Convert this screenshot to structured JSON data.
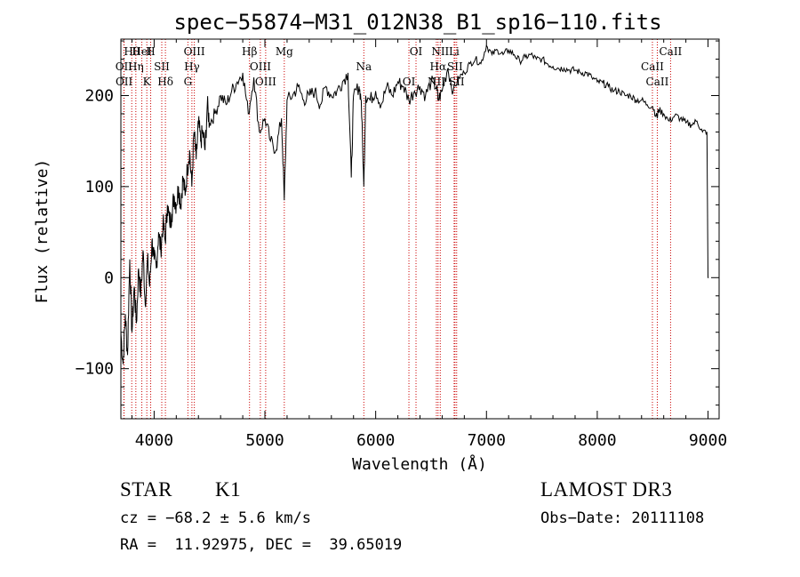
{
  "chart_data": {
    "type": "line",
    "title": "spec−55874−M31_012N38_B1_sp16−110.fits",
    "xlabel": "Wavelength (Å)",
    "ylabel": "Flux (relative)",
    "xlim": [
      3700,
      9100
    ],
    "ylim": [
      -155,
      262
    ],
    "xticks": [
      4000,
      5000,
      6000,
      7000,
      8000,
      9000
    ],
    "xtick_labels": [
      "4000",
      "5000",
      "6000",
      "7000",
      "8000",
      "9000"
    ],
    "yticks": [
      -100,
      0,
      100,
      200
    ],
    "ytick_labels": [
      "−100",
      "0",
      "100",
      "200"
    ],
    "series": [
      {
        "name": "flux",
        "x": [
          3700,
          3720,
          3740,
          3760,
          3780,
          3800,
          3820,
          3840,
          3860,
          3880,
          3900,
          3920,
          3940,
          3960,
          3980,
          4000,
          4020,
          4040,
          4060,
          4080,
          4100,
          4120,
          4140,
          4160,
          4180,
          4200,
          4220,
          4240,
          4260,
          4280,
          4300,
          4320,
          4340,
          4360,
          4380,
          4400,
          4420,
          4440,
          4460,
          4480,
          4500,
          4550,
          4600,
          4650,
          4700,
          4750,
          4800,
          4850,
          4900,
          4950,
          5000,
          5050,
          5100,
          5150,
          5175,
          5200,
          5250,
          5300,
          5350,
          5400,
          5450,
          5500,
          5550,
          5600,
          5650,
          5700,
          5750,
          5780,
          5800,
          5850,
          5870,
          5893,
          5910,
          5950,
          6000,
          6050,
          6100,
          6150,
          6200,
          6250,
          6300,
          6350,
          6400,
          6450,
          6500,
          6550,
          6563,
          6600,
          6650,
          6700,
          6750,
          6800,
          6850,
          6900,
          6950,
          7000,
          7050,
          7100,
          7150,
          7200,
          7250,
          7300,
          7350,
          7400,
          7450,
          7500,
          7550,
          7600,
          7650,
          7700,
          7750,
          7800,
          7850,
          7900,
          7950,
          8000,
          8050,
          8100,
          8150,
          8200,
          8250,
          8300,
          8350,
          8400,
          8450,
          8500,
          8542,
          8550,
          8600,
          8650,
          8700,
          8750,
          8800,
          8850,
          8900,
          8950,
          8990,
          9000,
          9005
        ],
        "values": [
          -60,
          -95,
          -40,
          -85,
          20,
          -60,
          -10,
          -50,
          10,
          -20,
          30,
          -30,
          20,
          -10,
          40,
          20,
          10,
          50,
          30,
          60,
          40,
          80,
          60,
          70,
          90,
          80,
          100,
          80,
          110,
          90,
          120,
          140,
          100,
          160,
          130,
          170,
          150,
          160,
          140,
          190,
          170,
          180,
          200,
          190,
          205,
          215,
          225,
          180,
          220,
          160,
          175,
          150,
          140,
          175,
          85,
          195,
          200,
          210,
          195,
          200,
          205,
          190,
          210,
          200,
          205,
          215,
          225,
          110,
          200,
          210,
          195,
          100,
          200,
          195,
          205,
          190,
          210,
          200,
          215,
          210,
          195,
          205,
          210,
          200,
          215,
          210,
          195,
          205,
          230,
          205,
          220,
          225,
          235,
          240,
          235,
          255,
          245,
          250,
          245,
          250,
          245,
          238,
          242,
          245,
          240,
          240,
          235,
          232,
          230,
          230,
          228,
          228,
          225,
          225,
          220,
          215,
          214,
          210,
          205,
          205,
          200,
          200,
          195,
          195,
          190,
          188,
          175,
          185,
          180,
          172,
          178,
          175,
          170,
          168,
          172,
          160,
          160,
          0,
          0
        ]
      }
    ],
    "spectral_lines": [
      {
        "name": "Hθ",
        "wavelength": 3798
      },
      {
        "name": "OII",
        "wavelength": 3727
      },
      {
        "name": "OII",
        "wavelength": 3729
      },
      {
        "name": "HeI",
        "wavelength": 3889
      },
      {
        "name": "Hη",
        "wavelength": 3835
      },
      {
        "name": "K",
        "wavelength": 3934
      },
      {
        "name": "H",
        "wavelength": 3969
      },
      {
        "name": "SII",
        "wavelength": 4069
      },
      {
        "name": "Hδ",
        "wavelength": 4102
      },
      {
        "name": "OIII",
        "wavelength": 4363
      },
      {
        "name": "Hγ",
        "wavelength": 4341
      },
      {
        "name": "G",
        "wavelength": 4305
      },
      {
        "name": "Hβ",
        "wavelength": 4861
      },
      {
        "name": "OIII",
        "wavelength": 4959
      },
      {
        "name": "OIII",
        "wavelength": 5007
      },
      {
        "name": "Mg",
        "wavelength": 5175
      },
      {
        "name": "Na",
        "wavelength": 5893
      },
      {
        "name": "OI",
        "wavelength": 6300
      },
      {
        "name": "OI",
        "wavelength": 6364
      },
      {
        "name": "Hα",
        "wavelength": 6563
      },
      {
        "name": "NII",
        "wavelength": 6548
      },
      {
        "name": "NII",
        "wavelength": 6583
      },
      {
        "name": "SII",
        "wavelength": 6716
      },
      {
        "name": "SII",
        "wavelength": 6731
      },
      {
        "name": "Li",
        "wavelength": 6708
      },
      {
        "name": "CaII",
        "wavelength": 8498
      },
      {
        "name": "CaII",
        "wavelength": 8542
      },
      {
        "name": "CaII",
        "wavelength": 8662
      }
    ],
    "line_color": "#cc0000"
  },
  "info": {
    "class": "STAR",
    "subclass": "K1",
    "survey": "LAMOST DR3",
    "velocity": "cz = −68.2 ± 5.6 km/s",
    "obs_date": "Obs−Date: 20111108",
    "coords": "RA =  11.92975, DEC =  39.65019"
  }
}
